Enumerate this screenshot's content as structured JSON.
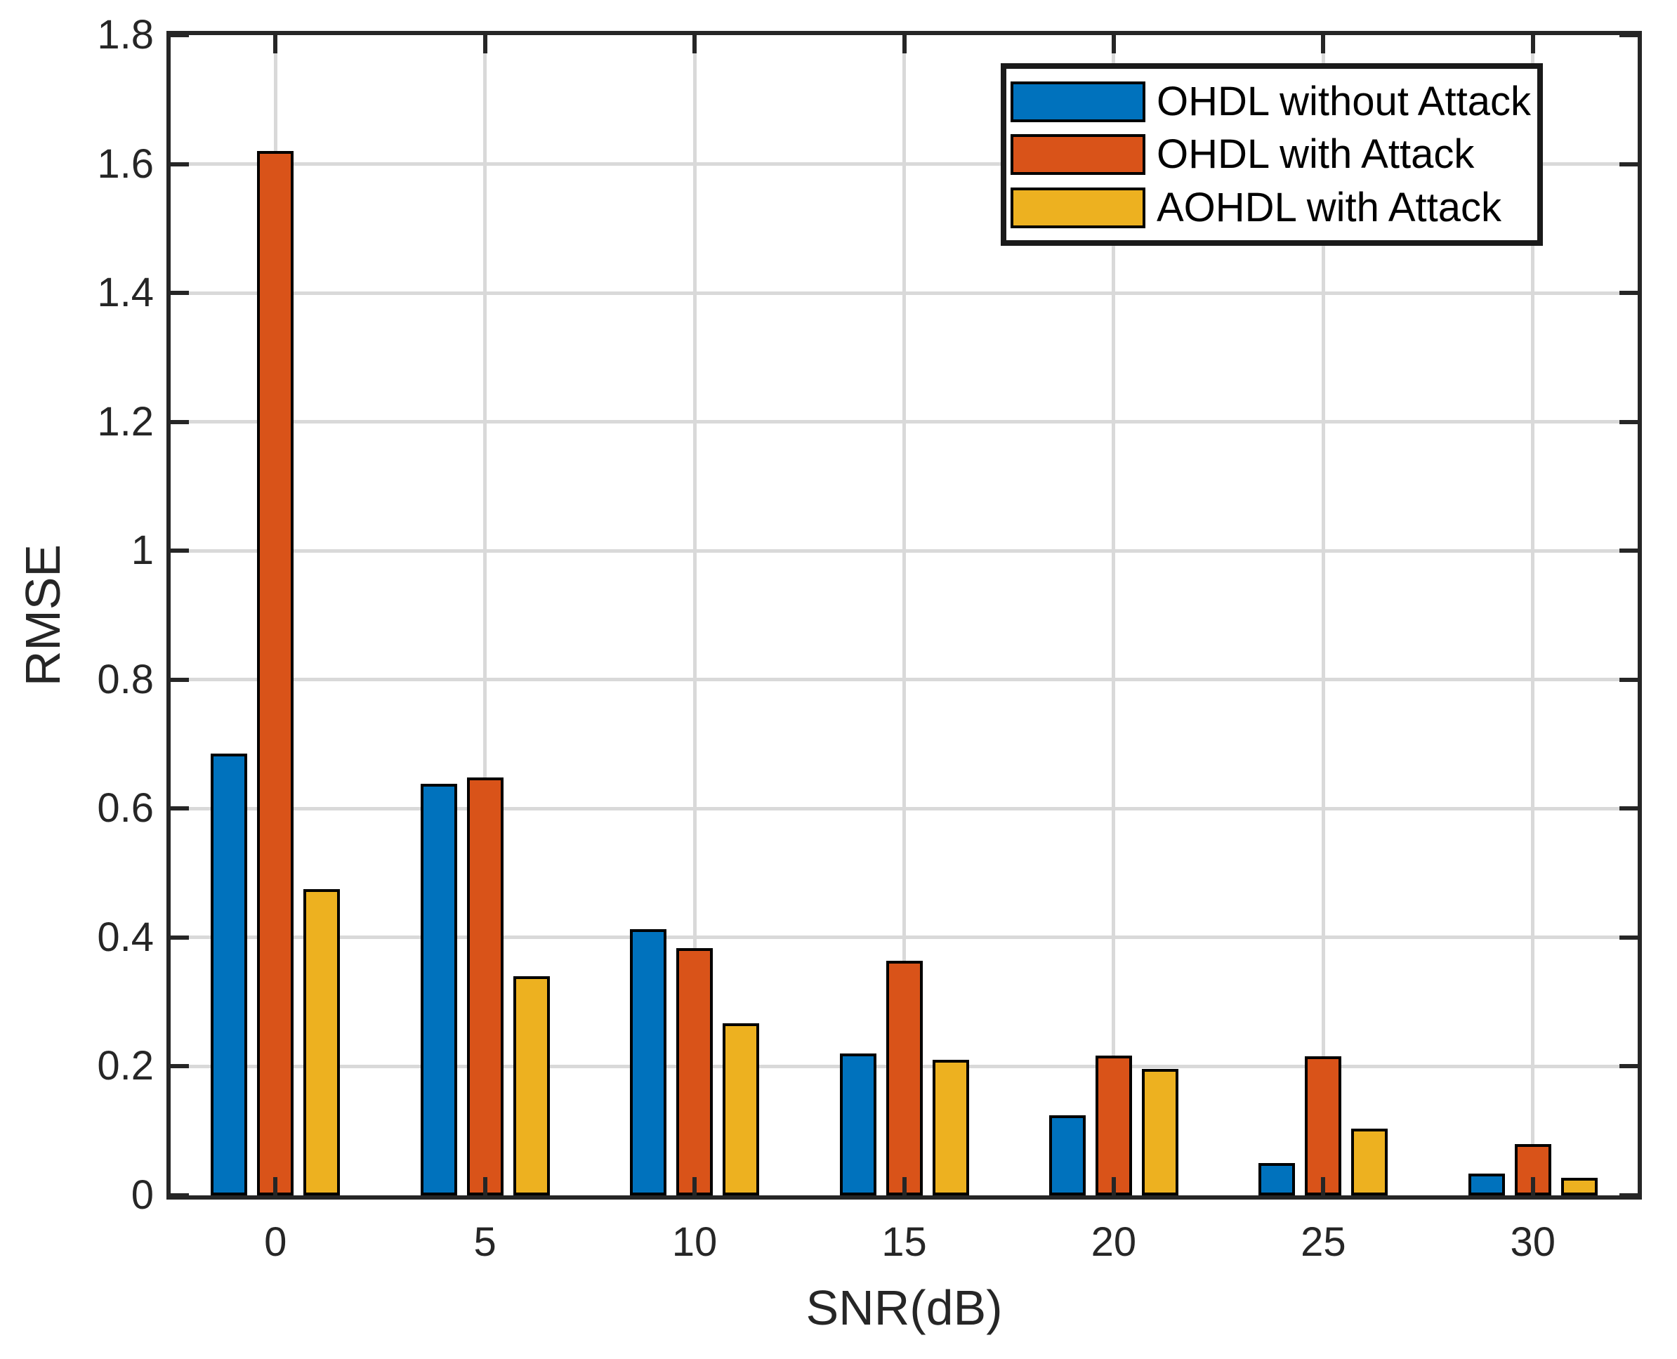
{
  "chart_data": {
    "type": "bar",
    "title": "",
    "xlabel": "SNR(dB)",
    "ylabel": "RMSE",
    "categories": [
      0,
      5,
      10,
      15,
      20,
      25,
      30
    ],
    "series": [
      {
        "name": "OHDL without Attack",
        "color": "#0072BD",
        "values": [
          0.685,
          0.638,
          0.413,
          0.22,
          0.124,
          0.05,
          0.034
        ]
      },
      {
        "name": "OHDL with Attack",
        "color": "#D95319",
        "values": [
          1.62,
          0.648,
          0.384,
          0.364,
          0.217,
          0.216,
          0.08
        ]
      },
      {
        "name": "AOHDL with Attack",
        "color": "#EDB120",
        "values": [
          0.475,
          0.34,
          0.267,
          0.21,
          0.196,
          0.103,
          0.027
        ]
      }
    ],
    "xlim": [
      -2.5,
      32.5
    ],
    "ylim": [
      0,
      1.8
    ],
    "xticks": [
      {
        "value": 0,
        "label": "0"
      },
      {
        "value": 5,
        "label": "5"
      },
      {
        "value": 10,
        "label": "10"
      },
      {
        "value": 15,
        "label": "15"
      },
      {
        "value": 20,
        "label": "20"
      },
      {
        "value": 25,
        "label": "25"
      },
      {
        "value": 30,
        "label": "30"
      }
    ],
    "yticks": [
      {
        "value": 0.0,
        "label": "0"
      },
      {
        "value": 0.2,
        "label": "0.2"
      },
      {
        "value": 0.4,
        "label": "0.4"
      },
      {
        "value": 0.6,
        "label": "0.6"
      },
      {
        "value": 0.8,
        "label": "0.8"
      },
      {
        "value": 1.0,
        "label": "1"
      },
      {
        "value": 1.2,
        "label": "1.2"
      },
      {
        "value": 1.4,
        "label": "1.4"
      },
      {
        "value": 1.6,
        "label": "1.6"
      },
      {
        "value": 1.8,
        "label": "1.8"
      }
    ],
    "grid": true,
    "legend_position": "top-right"
  },
  "style": {
    "axis_color": "#262626",
    "grid_color": "#d9d9d9",
    "bar_edge_color": "#000000",
    "legend_border_color": "#1a1a1a",
    "background": "#ffffff"
  }
}
